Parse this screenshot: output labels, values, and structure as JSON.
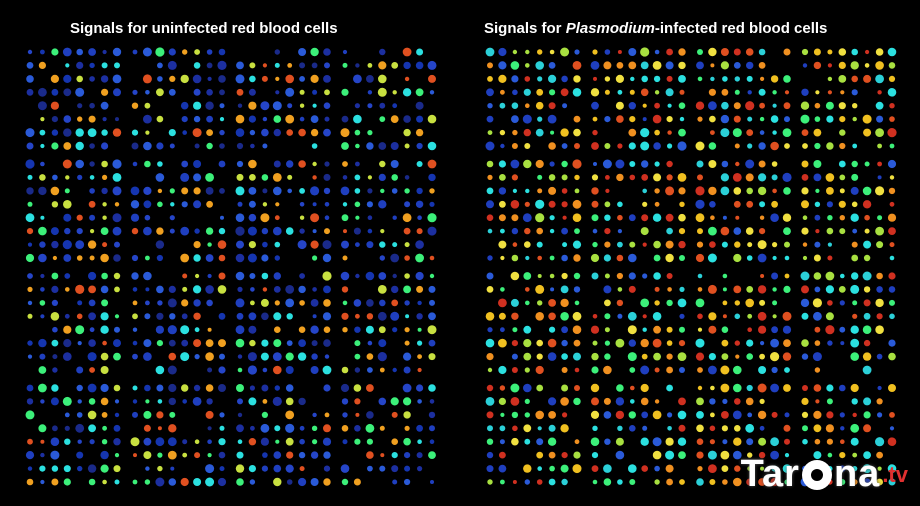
{
  "titles": {
    "left": "Signals for uninfected red blood cells",
    "right_prefix": "Signals for ",
    "right_italic": "Plasmodium",
    "right_suffix": "-infected red blood cells"
  },
  "watermark": {
    "text_before": "Tar",
    "text_after": "na",
    "tv": ".tv"
  },
  "palette": {
    "uninfected": [
      "#1a2a8a",
      "#1f3fbf",
      "#2a5ad8",
      "#1c2fa0",
      "#2be0e0",
      "#3cf07a",
      "#c8e040",
      "#f0a020",
      "#e05020",
      "#1535b0",
      "#2545c8"
    ],
    "infected": [
      "#2a5ad8",
      "#2be0e0",
      "#3cf07a",
      "#a8e040",
      "#f0c020",
      "#f09020",
      "#e05020",
      "#d03020",
      "#2bd0d8",
      "#f0e040",
      "#1f3fbf"
    ]
  }
}
